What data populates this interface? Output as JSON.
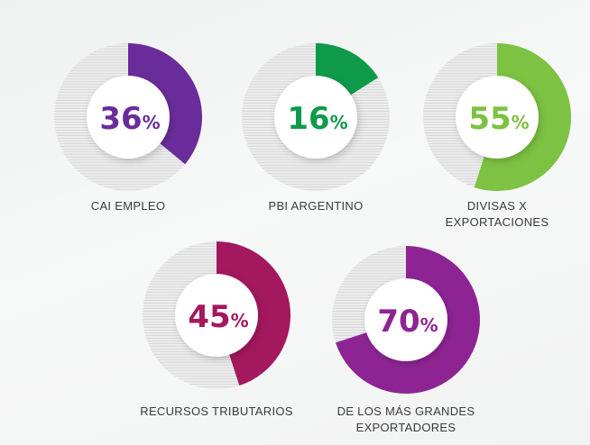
{
  "chart_data": {
    "type": "pie",
    "variant": "donut",
    "items": [
      {
        "value": 36,
        "pct_label": "%",
        "label": [
          "CAI EMPLEO"
        ],
        "color": "#6a2c9a"
      },
      {
        "value": 16,
        "pct_label": "%",
        "label": [
          "PBI ARGENTINO"
        ],
        "color": "#0f9a4a"
      },
      {
        "value": 55,
        "pct_label": "%",
        "label": [
          "DIVISAS X",
          "EXPORTACIONES"
        ],
        "color": "#7dc242"
      },
      {
        "value": 45,
        "pct_label": "%",
        "label": [
          "RECURSOS TRIBUTARIOS"
        ],
        "color": "#a3185f"
      },
      {
        "value": 70,
        "pct_label": "%",
        "label": [
          "DE LOS MÁS GRANDES",
          "EXPORTADORES"
        ],
        "color": "#8e2494"
      }
    ],
    "range": [
      0,
      100
    ]
  }
}
